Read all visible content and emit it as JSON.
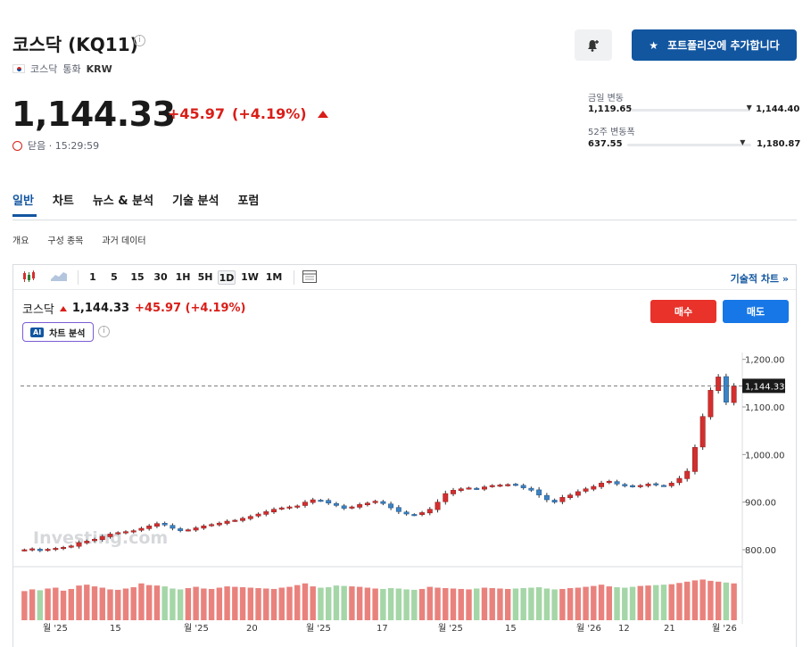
{
  "header": {
    "title": "코스닥 (KQ11)",
    "info_icon": "info-icon",
    "exchange": "코스닥",
    "currency_label": "통화",
    "currency": "KRW",
    "bell_icon": "bell-plus-icon",
    "add_portfolio_label": "포트폴리오에 추가합니다"
  },
  "quote": {
    "price": "1,144.33",
    "change": "+45.97",
    "change_pct": "(+4.19%)",
    "status": "닫음 · 15:29:59"
  },
  "ranges": {
    "day": {
      "label": "금일 변동",
      "low": "1,119.65",
      "high": "1,144.40",
      "position": 0.99
    },
    "week52": {
      "label": "52주 변동폭",
      "low": "637.55",
      "high": "1,180.87",
      "position": 0.93
    }
  },
  "tabs": [
    "일반",
    "차트",
    "뉴스 & 분석",
    "기술 분석",
    "포럼"
  ],
  "active_tab": "일반",
  "subtabs": [
    "개요",
    "구성 종목",
    "과거 데이터"
  ],
  "toolbar": {
    "intervals": [
      "1",
      "5",
      "15",
      "30",
      "1H",
      "5H",
      "1D",
      "1W",
      "1M"
    ],
    "selected": "1D",
    "advanced_label": "기술적 차트 »"
  },
  "legend": {
    "name": "코스닥",
    "price": "1,144.33",
    "change": "+45.97 (+4.19%)"
  },
  "ai_button": {
    "tag": "AI",
    "label": "차트 분석"
  },
  "buy_label": "매수",
  "sell_label": "매도",
  "watermark": "Investing.com",
  "colors": {
    "up": "#d32f2f",
    "down": "#3c83c4",
    "up_vol": "#e9827d",
    "down_vol": "#a5d6a7",
    "accent": "#1256a0"
  },
  "chart_data": {
    "type": "candlestick",
    "y_ticks": [
      "1,200.00",
      "1,100.00",
      "1,000.00",
      "900.00",
      "800.00"
    ],
    "y_tick_values": [
      1200,
      1100,
      1000,
      900,
      800
    ],
    "ylim": [
      770,
      1205
    ],
    "current_label": "1,144.33",
    "current_value": 1144.33,
    "x_labels": [
      "월 '25",
      "15",
      "월 '25",
      "20",
      "월 '25",
      "17",
      "월 '25",
      "15",
      "월 '26",
      "12",
      "21",
      "월 '26"
    ],
    "closes": [
      800,
      802,
      798,
      801,
      803,
      805,
      808,
      815,
      818,
      822,
      828,
      833,
      836,
      838,
      840,
      845,
      850,
      855,
      852,
      845,
      840,
      842,
      846,
      850,
      853,
      856,
      860,
      862,
      866,
      870,
      875,
      880,
      885,
      888,
      890,
      892,
      900,
      905,
      903,
      898,
      893,
      887,
      890,
      895,
      898,
      902,
      897,
      888,
      880,
      875,
      873,
      878,
      885,
      900,
      918,
      925,
      928,
      930,
      928,
      932,
      935,
      936,
      937,
      936,
      930,
      925,
      915,
      905,
      900,
      910,
      915,
      922,
      928,
      933,
      940,
      944,
      938,
      934,
      933,
      935,
      938,
      936,
      935,
      940,
      950,
      965,
      1015,
      1080,
      1135,
      1163,
      1110,
      1144
    ],
    "volume": [
      0.68,
      0.72,
      0.7,
      0.74,
      0.76,
      0.69,
      0.73,
      0.81,
      0.83,
      0.79,
      0.76,
      0.72,
      0.71,
      0.74,
      0.77,
      0.86,
      0.82,
      0.81,
      0.79,
      0.74,
      0.72,
      0.75,
      0.78,
      0.74,
      0.73,
      0.76,
      0.79,
      0.78,
      0.77,
      0.76,
      0.75,
      0.74,
      0.73,
      0.76,
      0.78,
      0.82,
      0.86,
      0.79,
      0.76,
      0.77,
      0.81,
      0.8,
      0.79,
      0.78,
      0.76,
      0.74,
      0.73,
      0.75,
      0.74,
      0.72,
      0.71,
      0.73,
      0.78,
      0.76,
      0.75,
      0.74,
      0.73,
      0.72,
      0.74,
      0.76,
      0.75,
      0.74,
      0.73,
      0.74,
      0.75,
      0.76,
      0.77,
      0.74,
      0.72,
      0.73,
      0.75,
      0.76,
      0.78,
      0.8,
      0.83,
      0.79,
      0.77,
      0.76,
      0.78,
      0.8,
      0.81,
      0.82,
      0.83,
      0.84,
      0.87,
      0.9,
      0.93,
      0.95,
      0.92,
      0.9,
      0.88,
      0.86
    ]
  }
}
